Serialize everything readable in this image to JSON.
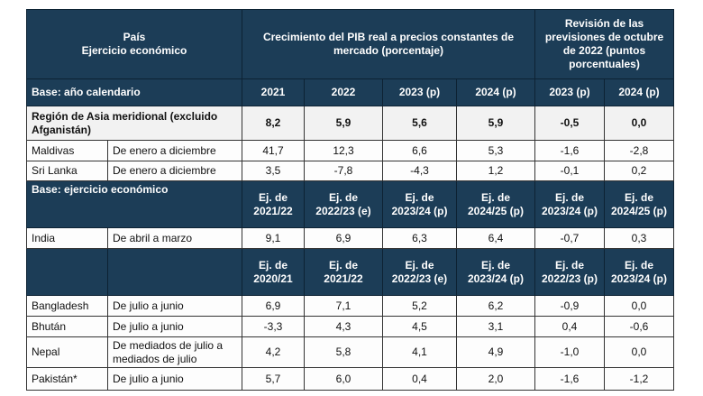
{
  "header": {
    "country_col": [
      "País",
      "Ejercicio económico"
    ],
    "growth_title": "Crecimiento del PIB real a precios constantes de mercado (porcentaje)",
    "revision_title": "Revisión de las previsiones de octubre de 2022 (puntos porcentuales)",
    "header_color": "#1c3d57"
  },
  "sections": [
    {
      "label": "Base: año calendario",
      "columns": [
        "2021",
        "2022",
        "2023 (p)",
        "2024 (p)",
        "2023 (p)",
        "2024 (p)"
      ],
      "rows": [
        {
          "country": "Región de Asia meridional (excluido Afganistán)",
          "period": "",
          "values": [
            "8,2",
            "5,9",
            "5,6",
            "5,9",
            "-0,5",
            "0,0"
          ],
          "bold": true
        },
        {
          "country": "Maldivas",
          "period": "De enero a diciembre",
          "values": [
            "41,7",
            "12,3",
            "6,6",
            "5,3",
            "-1,6",
            "-2,8"
          ]
        },
        {
          "country": "Sri Lanka",
          "period": "De enero a diciembre",
          "values": [
            "3,5",
            "-7,8",
            "-4,3",
            "1,2",
            "-0,1",
            "0,2"
          ]
        }
      ]
    },
    {
      "label": "Base: ejercicio económico",
      "columns": [
        "Ej. de 2021/22",
        "Ej. de 2022/23 (e)",
        "Ej. de 2023/24 (p)",
        "Ej. de 2024/25 (p)",
        "Ej. de 2023/24 (p)",
        "Ej. de 2024/25 (p)"
      ],
      "rows": [
        {
          "country": "India",
          "period": "De abril a marzo",
          "values": [
            "9,1",
            "6,9",
            "6,3",
            "6,4",
            "-0,7",
            "0,3"
          ]
        }
      ]
    },
    {
      "label": "",
      "columns": [
        "Ej. de 2020/21",
        "Ej. de 2021/22",
        "Ej. de 2022/23 (e)",
        "Ej. de 2023/24 (p)",
        "Ej. de 2022/23 (p)",
        "Ej. de 2023/24 (p)"
      ],
      "rows": [
        {
          "country": "Bangladesh",
          "period": "De julio a junio",
          "values": [
            "6,9",
            "7,1",
            "5,2",
            "6,2",
            "-0,9",
            "0,0"
          ]
        },
        {
          "country": "Bhután",
          "period": "De julio a junio",
          "values": [
            "-3,3",
            "4,3",
            "4,5",
            "3,1",
            "0,4",
            "-0,6"
          ]
        },
        {
          "country": "Nepal",
          "period": "De mediados de julio a mediados de julio",
          "values": [
            "4,2",
            "5,8",
            "4,1",
            "4,9",
            "-1,0",
            "0,0"
          ]
        },
        {
          "country": "Pakistán*",
          "period": "De julio a junio",
          "values": [
            "5,7",
            "6,0",
            "0,4",
            "2,0",
            "-1,6",
            "-1,2"
          ]
        }
      ]
    }
  ]
}
